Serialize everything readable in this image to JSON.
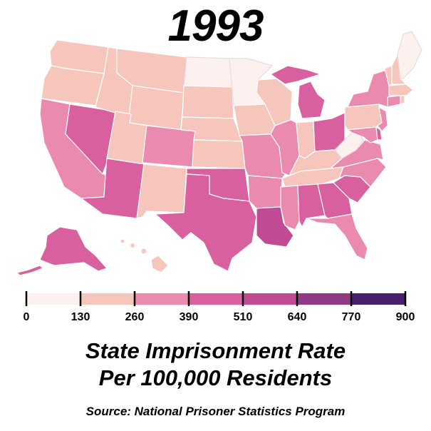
{
  "title": "1993",
  "subtitle_line1": "State Imprisonment Rate",
  "subtitle_line2": "Per 100,000 Residents",
  "source": "Source: National Prisoner Statistics Program",
  "legend": {
    "breaks": [
      0,
      130,
      260,
      390,
      510,
      640,
      770,
      900
    ],
    "colors": [
      "#fdf1ef",
      "#f6c6bd",
      "#e98aae",
      "#d9609f",
      "#c04a93",
      "#8e3a85",
      "#4a1f6d"
    ]
  },
  "map_data": {
    "type": "choropleth",
    "bins": {
      "0-130": [
        "ND",
        "MN",
        "WV",
        "ME"
      ],
      "130-260": [
        "WA",
        "OR",
        "ID",
        "MT",
        "WY",
        "UT",
        "NM",
        "SD",
        "NE",
        "KS",
        "IA",
        "WI",
        "IN",
        "KY",
        "TN",
        "PA",
        "VT",
        "NH",
        "MA",
        "RI",
        "HI"
      ],
      "260-390": [
        "CA",
        "CO",
        "MO",
        "AR",
        "IL",
        "MS",
        "VA",
        "NC",
        "NJ",
        "CT",
        "NY",
        "FL",
        "MD"
      ],
      "390-510": [
        "NV",
        "AZ",
        "TX",
        "OK",
        "AL",
        "GA",
        "SC",
        "MI",
        "OH",
        "DE",
        "AK"
      ],
      "510-640": [
        "LA"
      ],
      "640-770": [],
      "770-900": []
    }
  }
}
